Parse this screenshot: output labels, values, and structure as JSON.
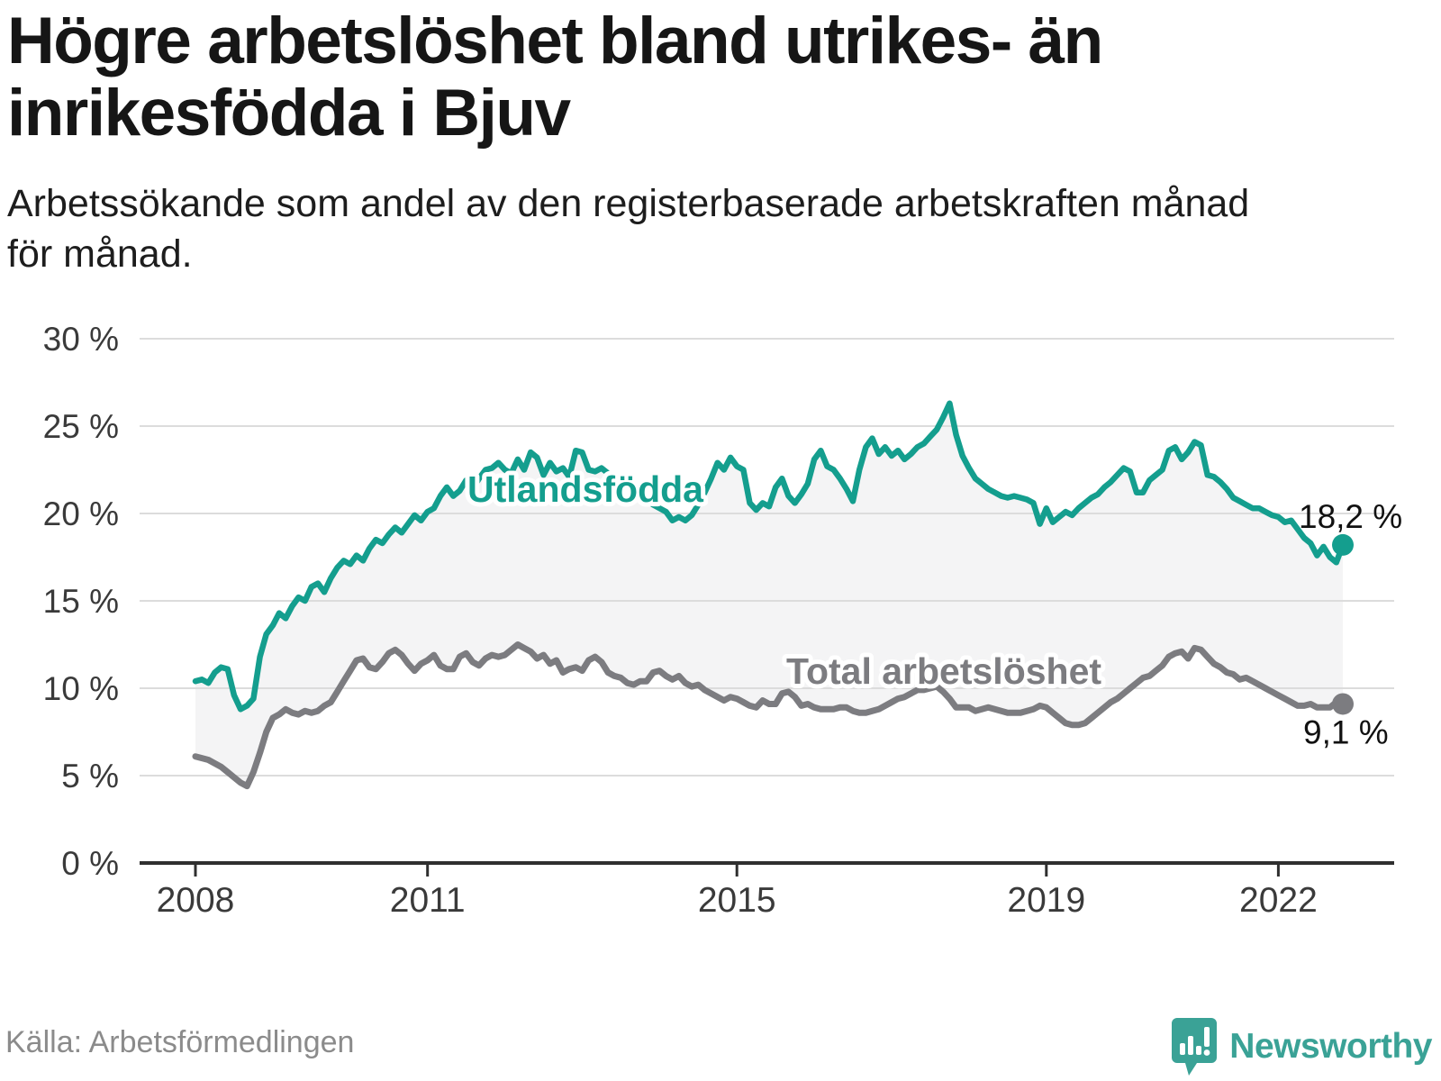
{
  "header": {
    "title_line1": "Högre arbetslöshet bland utrikes- än",
    "title_line2": "inrikesfödda i Bjuv",
    "subtitle_line1": "Arbetssökande som andel av den registerbaserade arbetskraften månad",
    "subtitle_line2": "för månad."
  },
  "footer": {
    "source": "Källa: Arbetsförmedlingen",
    "brand": "Newsworthy"
  },
  "colors": {
    "teal": "#149e8e",
    "gray": "#7c7c80",
    "fill": "#f4f4f5",
    "grid": "#dcdcdc",
    "axis": "#2f2f2f",
    "tick_text": "#3a3a3a",
    "value_text": "#111111",
    "logo_teal": "#3aa296"
  },
  "chart_data": {
    "type": "line",
    "title": "Högre arbetslöshet bland utrikes- än inrikesfödda i Bjuv",
    "subtitle": "Arbetssökande som andel av den registerbaserade arbetskraften månad för månad.",
    "unit": "%",
    "x_start": {
      "year": 2008,
      "month": 1
    },
    "x_end": {
      "year": 2022,
      "month": 11
    },
    "ylim": [
      0,
      30
    ],
    "yticks": [
      0,
      5,
      10,
      15,
      20,
      25,
      30
    ],
    "ytick_labels": [
      "0 %",
      "5 %",
      "10 %",
      "15 %",
      "20 %",
      "25 %",
      "30 %"
    ],
    "xticks": [
      2008,
      2011,
      2015,
      2019,
      2022
    ],
    "grid": true,
    "legend_position": "inline-labels",
    "area_fill_between_series": true,
    "series": [
      {
        "name": "Utlandsfödda",
        "end_label": "18,2 %",
        "end_value": 18.2,
        "values": [
          10.4,
          10.5,
          10.3,
          10.9,
          11.2,
          11.1,
          9.6,
          8.8,
          9.0,
          9.4,
          11.8,
          13.1,
          13.6,
          14.3,
          14.0,
          14.7,
          15.2,
          15.0,
          15.8,
          16.0,
          15.5,
          16.3,
          16.9,
          17.3,
          17.1,
          17.6,
          17.3,
          18.0,
          18.5,
          18.3,
          18.8,
          19.2,
          18.9,
          19.4,
          19.9,
          19.6,
          20.1,
          20.3,
          21.0,
          21.5,
          21.0,
          21.3,
          21.9,
          21.4,
          22.0,
          22.5,
          22.6,
          22.9,
          22.5,
          22.3,
          23.1,
          22.5,
          23.5,
          23.2,
          22.2,
          22.9,
          22.4,
          22.6,
          22.1,
          23.6,
          23.5,
          22.5,
          22.4,
          22.6,
          22.3,
          22.0,
          21.8,
          21.5,
          21.3,
          21.0,
          20.8,
          20.5,
          20.3,
          20.1,
          19.6,
          19.8,
          19.6,
          19.9,
          20.5,
          21.2,
          22.0,
          22.9,
          22.5,
          23.2,
          22.7,
          22.5,
          20.6,
          20.2,
          20.6,
          20.4,
          21.5,
          22.0,
          21.0,
          20.6,
          21.1,
          21.7,
          23.1,
          23.6,
          22.7,
          22.5,
          22.0,
          21.4,
          20.7,
          22.5,
          23.8,
          24.3,
          23.4,
          23.8,
          23.3,
          23.6,
          23.1,
          23.4,
          23.8,
          24.0,
          24.4,
          24.8,
          25.5,
          26.3,
          24.5,
          23.3,
          22.6,
          22.0,
          21.7,
          21.4,
          21.2,
          21.0,
          20.9,
          21.0,
          20.9,
          20.8,
          20.6,
          19.4,
          20.3,
          19.5,
          19.8,
          20.1,
          19.9,
          20.3,
          20.6,
          20.9,
          21.1,
          21.5,
          21.8,
          22.2,
          22.6,
          22.4,
          21.2,
          21.2,
          21.9,
          22.2,
          22.5,
          23.6,
          23.8,
          23.1,
          23.5,
          24.1,
          23.9,
          22.2,
          22.1,
          21.8,
          21.4,
          20.9,
          20.7,
          20.5,
          20.3,
          20.3,
          20.1,
          19.9,
          19.8,
          19.5,
          19.6,
          19.1,
          18.6,
          18.3,
          17.6,
          18.1,
          17.5,
          17.2,
          18.2
        ]
      },
      {
        "name": "Total arbetslöshet",
        "end_label": "9,1 %",
        "end_value": 9.1,
        "values": [
          6.1,
          6.0,
          5.9,
          5.7,
          5.5,
          5.2,
          4.9,
          4.6,
          4.4,
          5.2,
          6.3,
          7.5,
          8.3,
          8.5,
          8.8,
          8.6,
          8.5,
          8.7,
          8.6,
          8.7,
          9.0,
          9.2,
          9.8,
          10.4,
          11.0,
          11.6,
          11.7,
          11.2,
          11.1,
          11.5,
          12.0,
          12.2,
          11.9,
          11.4,
          11.0,
          11.4,
          11.6,
          11.9,
          11.3,
          11.1,
          11.1,
          11.8,
          12.0,
          11.5,
          11.3,
          11.7,
          11.9,
          11.8,
          11.9,
          12.2,
          12.5,
          12.3,
          12.1,
          11.7,
          11.9,
          11.4,
          11.6,
          10.9,
          11.1,
          11.2,
          11.0,
          11.6,
          11.8,
          11.5,
          10.9,
          10.7,
          10.6,
          10.3,
          10.2,
          10.4,
          10.4,
          10.9,
          11.0,
          10.7,
          10.5,
          10.7,
          10.3,
          10.1,
          10.2,
          9.9,
          9.7,
          9.5,
          9.3,
          9.5,
          9.4,
          9.2,
          9.0,
          8.9,
          9.3,
          9.1,
          9.1,
          9.7,
          9.8,
          9.5,
          9.0,
          9.1,
          8.9,
          8.8,
          8.8,
          8.8,
          8.9,
          8.9,
          8.7,
          8.6,
          8.6,
          8.7,
          8.8,
          9.0,
          9.2,
          9.4,
          9.5,
          9.7,
          9.9,
          9.9,
          10.0,
          10.1,
          9.8,
          9.4,
          8.9,
          8.9,
          8.9,
          8.7,
          8.8,
          8.9,
          8.8,
          8.7,
          8.6,
          8.6,
          8.6,
          8.7,
          8.8,
          9.0,
          8.9,
          8.6,
          8.3,
          8.0,
          7.9,
          7.9,
          8.0,
          8.3,
          8.6,
          8.9,
          9.2,
          9.4,
          9.7,
          10.0,
          10.3,
          10.6,
          10.7,
          11.0,
          11.3,
          11.8,
          12.0,
          12.1,
          11.7,
          12.3,
          12.2,
          11.8,
          11.4,
          11.2,
          10.9,
          10.8,
          10.5,
          10.6,
          10.4,
          10.2,
          10.0,
          9.8,
          9.6,
          9.4,
          9.2,
          9.0,
          9.0,
          9.1,
          8.9,
          8.9,
          8.9,
          9.2,
          9.1
        ]
      }
    ]
  }
}
